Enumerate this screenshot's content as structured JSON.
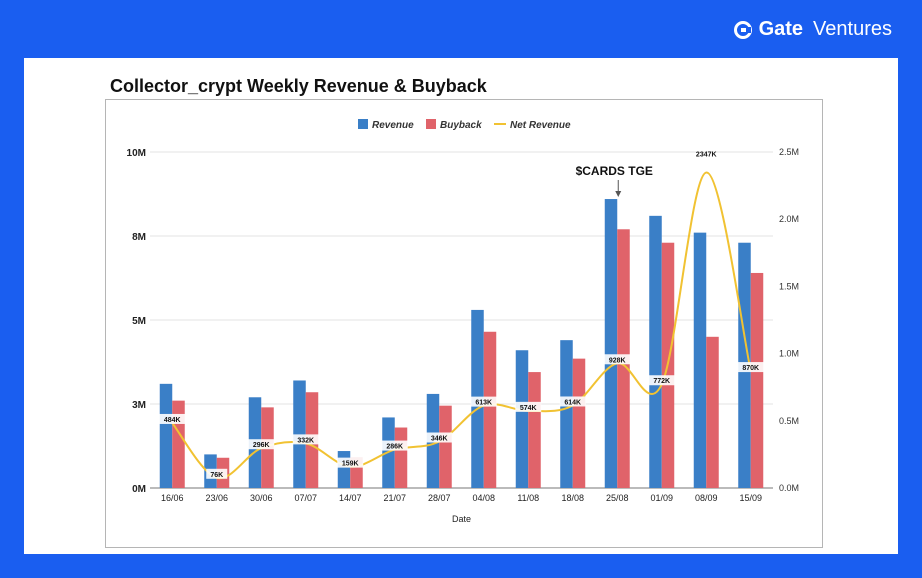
{
  "brand": {
    "strong": "Gate",
    "light": "Ventures",
    "color": "#ffffff"
  },
  "background_color": "#1a5ef0",
  "chart_data": {
    "type": "bar",
    "title": "Collector_crypt Weekly Revenue & Buyback",
    "xlabel": "Date",
    "ylabel": "",
    "categories": [
      "16/06",
      "23/06",
      "30/06",
      "07/07",
      "14/07",
      "21/07",
      "28/07",
      "04/08",
      "11/08",
      "18/08",
      "25/08",
      "01/09",
      "08/09",
      "15/09"
    ],
    "series": [
      {
        "name": "Revenue",
        "axis": "left",
        "type": "bar",
        "color": "#3a7fc7",
        "values": [
          3.1,
          1.0,
          2.7,
          3.2,
          1.1,
          2.1,
          2.8,
          5.3,
          4.1,
          4.4,
          8.6,
          8.1,
          7.6,
          7.3
        ]
      },
      {
        "name": "Buyback",
        "axis": "left",
        "type": "bar",
        "color": "#e0636a",
        "values": [
          2.6,
          0.9,
          2.4,
          2.85,
          0.9,
          1.8,
          2.45,
          4.65,
          3.45,
          3.85,
          7.7,
          7.3,
          4.5,
          6.4
        ]
      },
      {
        "name": "Net Revenue",
        "axis": "right",
        "type": "line",
        "color": "#f1c232",
        "values": [
          0.484,
          0.076,
          0.296,
          0.332,
          0.159,
          0.286,
          0.346,
          0.613,
          0.574,
          0.614,
          0.928,
          0.772,
          2.347,
          0.87
        ],
        "labels": [
          "484K",
          "76K",
          "296K",
          "332K",
          "159K",
          "286K",
          "346K",
          "613K",
          "574K",
          "614K",
          "928K",
          "772K",
          "2347K",
          "870K"
        ]
      }
    ],
    "y_left": {
      "ticks": [
        0,
        2.5,
        5,
        7.5,
        10
      ],
      "tick_labels": [
        "0M",
        "3M",
        "5M",
        "8M",
        "10M"
      ],
      "ylim": [
        0,
        10
      ]
    },
    "y_right": {
      "ticks": [
        0,
        0.5,
        1.0,
        1.5,
        2.0,
        2.5
      ],
      "tick_labels": [
        "0.0M",
        "0.5M",
        "1.0M",
        "1.5M",
        "2.0M",
        "2.5M"
      ],
      "ylim": [
        0,
        2.5
      ]
    },
    "grid": true,
    "legend_position": "top-center",
    "annotation": {
      "text": "$CARDS TGE",
      "category": "25/08"
    }
  }
}
